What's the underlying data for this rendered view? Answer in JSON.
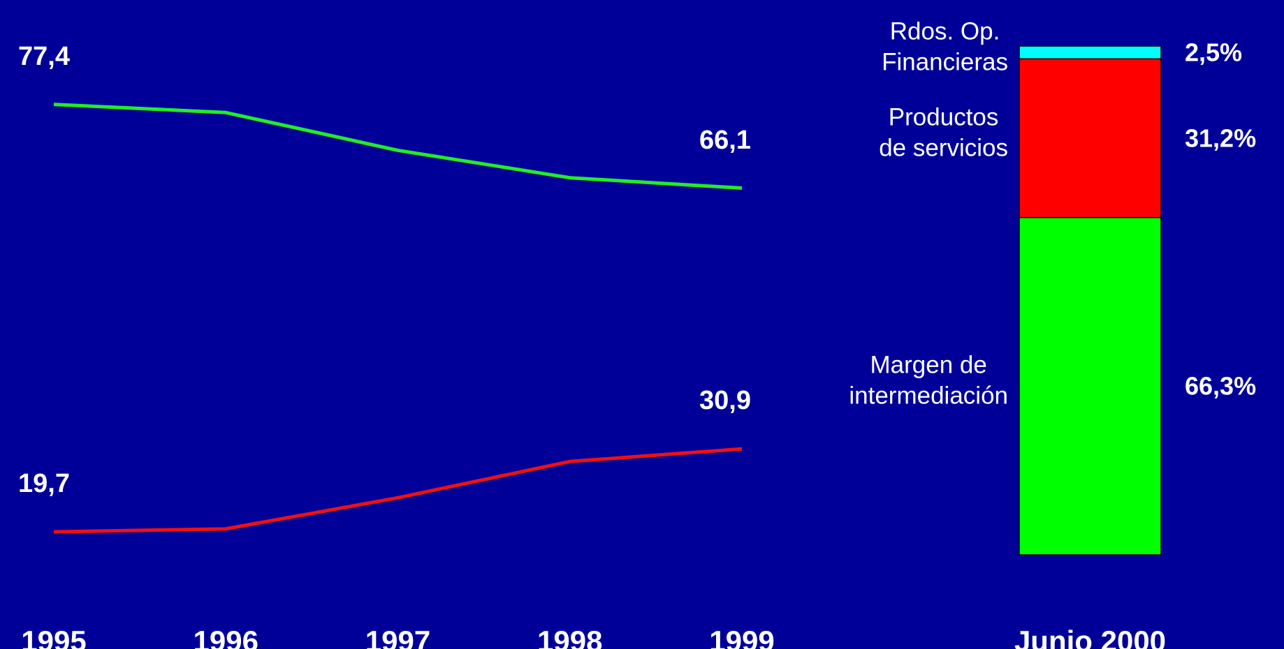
{
  "chart_data": [
    {
      "type": "line",
      "categories": [
        "1995",
        "1996",
        "1997",
        "1998",
        "1999"
      ],
      "series": [
        {
          "name": "Margen de intermediación",
          "color": "#22ee22",
          "values": [
            77.4,
            76.3,
            71.2,
            67.5,
            66.1
          ],
          "value_labels": [
            "77,4",
            null,
            null,
            null,
            "66,1"
          ]
        },
        {
          "name": "Productos de servicios",
          "color": "#ee1111",
          "values": [
            19.7,
            20.1,
            24.3,
            29.2,
            30.9
          ],
          "value_labels": [
            "19,7",
            null,
            null,
            null,
            "30,9"
          ]
        }
      ],
      "ylim": [
        15,
        80
      ]
    },
    {
      "type": "stacked_bar",
      "categories": [
        "Junio 2000"
      ],
      "series": [
        {
          "name": "Margen de\nintermediación",
          "color": "#00ff00",
          "values": [
            66.3
          ],
          "value_labels": [
            "66,3%"
          ]
        },
        {
          "name": "Productos\nde servicios",
          "color": "#ff0000",
          "values": [
            31.2
          ],
          "value_labels": [
            "31,2%"
          ]
        },
        {
          "name": "Rdos. Op.\nFinancieras",
          "color": "#00ffff",
          "values": [
            2.5
          ],
          "value_labels": [
            "2,5%"
          ]
        }
      ],
      "ylim": [
        0,
        100
      ]
    }
  ]
}
